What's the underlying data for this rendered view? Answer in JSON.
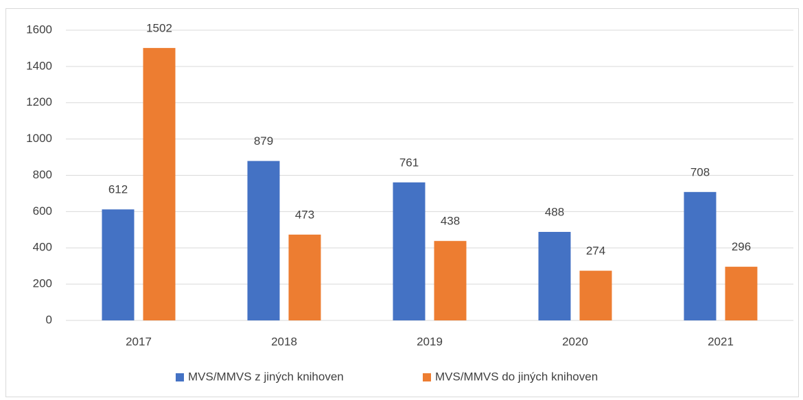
{
  "chart_data": {
    "type": "bar",
    "categories": [
      "2017",
      "2018",
      "2019",
      "2020",
      "2021"
    ],
    "series": [
      {
        "name": "MVS/MMVS z jiných knihoven",
        "color": "#4472c4",
        "values": [
          612,
          879,
          761,
          488,
          708
        ]
      },
      {
        "name": "MVS/MMVS do jiných knihoven",
        "color": "#ed7d31",
        "values": [
          1502,
          473,
          438,
          274,
          296
        ]
      }
    ],
    "ylim": [
      0,
      1600
    ],
    "yticks": [
      0,
      200,
      400,
      600,
      800,
      1000,
      1200,
      1400,
      1600
    ],
    "grid": true,
    "legend": "bottom"
  }
}
